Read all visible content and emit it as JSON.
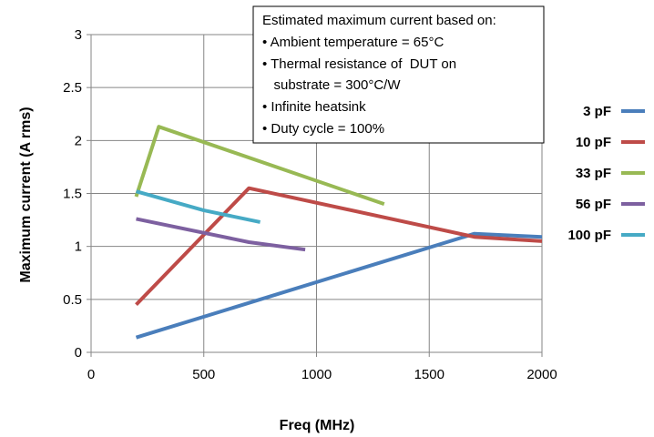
{
  "chart_data": {
    "type": "line",
    "xlabel": "Freq (MHz)",
    "ylabel": "Maximum current (A rms)",
    "xlim": [
      0,
      2000
    ],
    "ylim": [
      0,
      3
    ],
    "xticks": [
      0,
      500,
      1000,
      1500,
      2000
    ],
    "yticks": [
      0,
      0.5,
      1,
      1.5,
      2,
      2.5,
      3
    ],
    "xtick_labels": [
      "0",
      "500",
      "1000",
      "1500",
      "2000"
    ],
    "ytick_labels": [
      "0",
      "0.5",
      "1",
      "1.5",
      "2",
      "2.5",
      "3"
    ],
    "grid": true,
    "legend_position": "right",
    "series": [
      {
        "name": "3 pF",
        "color": "#4a7ebb",
        "x": [
          200,
          1700,
          2000
        ],
        "y": [
          0.14,
          1.12,
          1.09
        ]
      },
      {
        "name": "10 pF",
        "color": "#be4b48",
        "x": [
          200,
          700,
          1700,
          2000
        ],
        "y": [
          0.45,
          1.55,
          1.09,
          1.05
        ]
      },
      {
        "name": "33 pF",
        "color": "#98b954",
        "x": [
          200,
          300,
          1300
        ],
        "y": [
          1.47,
          2.13,
          1.4
        ]
      },
      {
        "name": "56 pF",
        "color": "#7d60a0",
        "x": [
          200,
          700,
          950
        ],
        "y": [
          1.26,
          1.04,
          0.97
        ]
      },
      {
        "name": "100 pF",
        "color": "#46aac5",
        "x": [
          200,
          500,
          750
        ],
        "y": [
          1.52,
          1.34,
          1.23
        ]
      }
    ],
    "annotation": {
      "heading": "Estimated maximum current based on:",
      "lines": [
        "• Ambient temperature = 65°C",
        "• Thermal resistance of  DUT on",
        "   substrate = 300°C/W",
        "• Infinite heatsink",
        "• Duty cycle = 100%"
      ]
    }
  }
}
